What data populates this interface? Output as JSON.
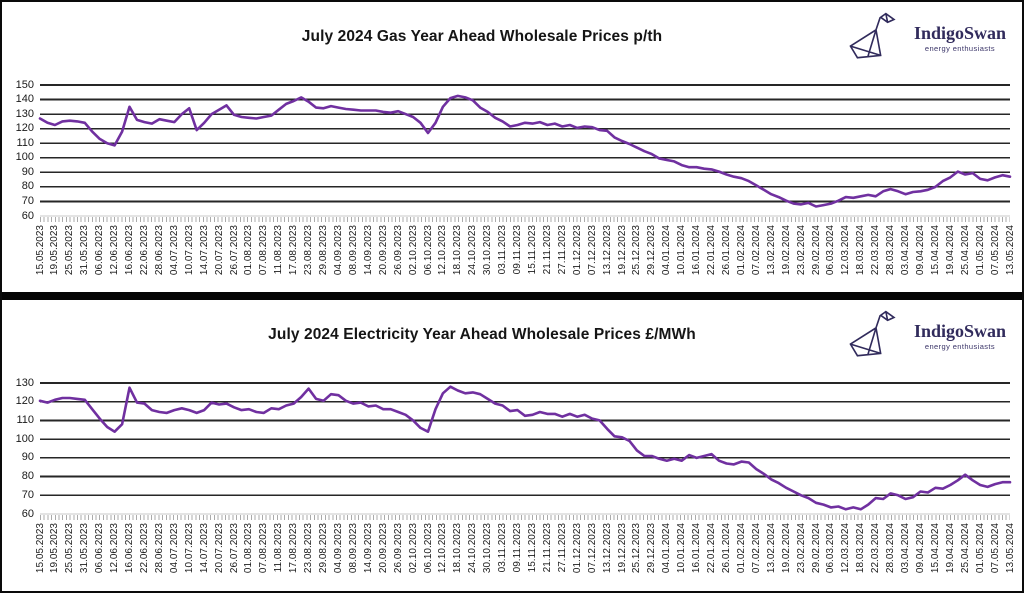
{
  "logo": {
    "name": "IndigoSwan",
    "tagline": "energy enthusiasts"
  },
  "chart_data": [
    {
      "type": "line",
      "title": "July 2024 Gas Year Ahead Wholesale Prices p/th",
      "unit": "p/th",
      "series_name": "Gas year ahead wholesale price",
      "line_color": "#7030A0",
      "grid_color": "#262626",
      "axis_color": "#c8c8c8",
      "ylim": [
        60,
        150
      ],
      "y_ticks": [
        150,
        140,
        130,
        120,
        110,
        100,
        90,
        80,
        70,
        60
      ],
      "grid": "horizontal only",
      "legend": "none",
      "sampling_note": "two samples per x-label interval, read from chart",
      "x_labels": [
        "15.05.2023",
        "19.05.2023",
        "25.05.2023",
        "31.05.2023",
        "06.06.2023",
        "12.06.2023",
        "16.06.2023",
        "22.06.2023",
        "28.06.2023",
        "04.07.2023",
        "10.07.2023",
        "14.07.2023",
        "20.07.2023",
        "26.07.2023",
        "01.08.2023",
        "07.08.2023",
        "11.08.2023",
        "17.08.2023",
        "23.08.2023",
        "29.08.2023",
        "04.09.2023",
        "08.09.2023",
        "14.09.2023",
        "20.09.2023",
        "26.09.2023",
        "02.10.2023",
        "06.10.2023",
        "12.10.2023",
        "18.10.2023",
        "24.10.2023",
        "30.10.2023",
        "03.11.2023",
        "09.11.2023",
        "15.11.2023",
        "21.11.2023",
        "27.11.2023",
        "01.12.2023",
        "07.12.2023",
        "13.12.2023",
        "19.12.2023",
        "25.12.2023",
        "29.12.2023",
        "04.01.2024",
        "10.01.2024",
        "16.01.2024",
        "22.01.2024",
        "26.01.2024",
        "01.02.2024",
        "07.02.2024",
        "13.02.2024",
        "19.02.2024",
        "23.02.2024",
        "29.02.2024",
        "06.03.2024",
        "12.03.2024",
        "18.03.2024",
        "22.03.2024",
        "28.03.2024",
        "03.04.2024",
        "09.04.2024",
        "15.04.2024",
        "19.04.2024",
        "25.04.2024",
        "01.05.2024",
        "07.05.2024",
        "13.05.2024"
      ],
      "values": [
        127,
        124,
        122.5,
        125,
        125.5,
        125,
        124,
        118,
        113,
        110,
        108.5,
        118,
        135,
        126,
        124.5,
        123.5,
        126.5,
        125.5,
        124.5,
        130,
        134,
        119,
        124,
        130,
        133,
        136,
        129.5,
        128,
        127.5,
        127,
        128,
        129,
        133,
        137,
        139,
        141.5,
        138.5,
        134.5,
        134,
        135.5,
        134.5,
        133.5,
        133,
        132.5,
        132.5,
        132.5,
        131.5,
        131,
        132,
        130,
        128,
        124,
        117,
        124,
        135,
        141,
        142.5,
        141.5,
        139.5,
        134.5,
        131.5,
        127.5,
        125,
        121.5,
        122.5,
        124,
        123.5,
        124.5,
        122.5,
        123.5,
        121.5,
        122.5,
        120.5,
        121.5,
        121,
        119,
        118.5,
        114,
        111.5,
        109.5,
        107,
        104.5,
        102.5,
        99.5,
        98.5,
        97.5,
        95,
        93.5,
        93.5,
        92.5,
        92,
        90.5,
        88.5,
        87,
        86,
        84,
        81,
        78,
        75,
        73,
        70.5,
        68.5,
        68,
        69,
        66.5,
        67.5,
        68.5,
        70.5,
        73,
        72.5,
        73.5,
        74.5,
        73.5,
        77,
        78.5,
        77,
        75,
        76.5,
        77,
        78,
        80,
        84,
        86.5,
        90.5,
        88.5,
        89.5,
        85.5,
        84.5,
        86.5,
        88,
        87
      ]
    },
    {
      "type": "line",
      "title": "July 2024 Electricity Year Ahead Wholesale Prices £/MWh",
      "unit": "£/MWh",
      "series_name": "Electricity year ahead wholesale price",
      "line_color": "#7030A0",
      "grid_color": "#262626",
      "axis_color": "#c8c8c8",
      "ylim": [
        60,
        130
      ],
      "y_ticks": [
        130,
        120,
        110,
        100,
        90,
        80,
        70,
        60
      ],
      "grid": "horizontal only",
      "legend": "none",
      "sampling_note": "two samples per x-label interval, read from chart",
      "x_labels": [
        "15.05.2023",
        "19.05.2023",
        "25.05.2023",
        "31.05.2023",
        "06.06.2023",
        "12.06.2023",
        "16.06.2023",
        "22.06.2023",
        "28.06.2023",
        "04.07.2023",
        "10.07.2023",
        "14.07.2023",
        "20.07.2023",
        "26.07.2023",
        "01.08.2023",
        "07.08.2023",
        "11.08.2023",
        "17.08.2023",
        "23.08.2023",
        "29.08.2023",
        "04.09.2023",
        "08.09.2023",
        "14.09.2023",
        "20.09.2023",
        "26.09.2023",
        "02.10.2023",
        "06.10.2023",
        "12.10.2023",
        "18.10.2023",
        "24.10.2023",
        "30.10.2023",
        "03.11.2023",
        "09.11.2023",
        "15.11.2023",
        "21.11.2023",
        "27.11.2023",
        "01.12.2023",
        "07.12.2023",
        "13.12.2023",
        "19.12.2023",
        "25.12.2023",
        "29.12.2023",
        "04.01.2024",
        "10.01.2024",
        "16.01.2024",
        "22.01.2024",
        "26.01.2024",
        "01.02.2024",
        "07.02.2024",
        "13.02.2024",
        "19.02.2024",
        "23.02.2024",
        "29.02.2024",
        "06.03.2024",
        "12.03.2024",
        "18.03.2024",
        "22.03.2024",
        "28.03.2024",
        "03.04.2024",
        "09.04.2024",
        "15.04.2024",
        "19.04.2024",
        "25.04.2024",
        "01.05.2024",
        "07.05.2024",
        "13.05.2024"
      ],
      "values": [
        120.5,
        119.5,
        121,
        122,
        122,
        121.5,
        121,
        116,
        111,
        106.5,
        104,
        108,
        127.5,
        119.5,
        119,
        115.5,
        114.5,
        114,
        115.5,
        116.5,
        115.5,
        114,
        115.5,
        119.5,
        118.5,
        119,
        117,
        115.5,
        116,
        114.5,
        114,
        116.5,
        116,
        118,
        119,
        122.5,
        127,
        121.5,
        120.5,
        124,
        123.5,
        120.5,
        119,
        119.5,
        117.5,
        118,
        116,
        116,
        114.5,
        113,
        110,
        106,
        104,
        116,
        124.5,
        128,
        126,
        124.5,
        125,
        124,
        121.5,
        119,
        118,
        115,
        115.5,
        112.5,
        113,
        114.5,
        113.5,
        113.5,
        112,
        113.5,
        112,
        113,
        111,
        110,
        105.5,
        101.5,
        101,
        99,
        94,
        91,
        91,
        89.5,
        88.5,
        89.5,
        88.5,
        91.5,
        90,
        91,
        92,
        88.5,
        87,
        86.5,
        88,
        87.5,
        84,
        81.5,
        78.5,
        76.5,
        74,
        72,
        70,
        68.5,
        66,
        65,
        63.5,
        64,
        62.5,
        63.5,
        62.5,
        65,
        68.5,
        68,
        71,
        70,
        68,
        69,
        72,
        71.5,
        74,
        73.5,
        75.5,
        78,
        81,
        78,
        75.5,
        74.5,
        76,
        77,
        77
      ]
    }
  ]
}
